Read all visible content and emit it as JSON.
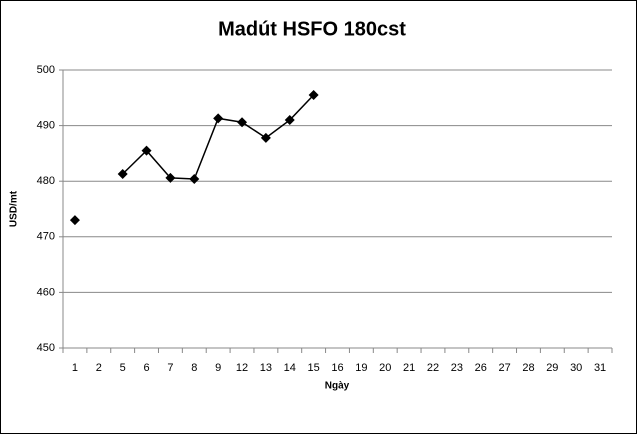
{
  "chart_data": {
    "type": "line",
    "title": "Madút HSFO 180cst",
    "x_label": "Ngày",
    "y_label": "USD/mt",
    "categories": [
      "1",
      "2",
      "5",
      "6",
      "7",
      "8",
      "9",
      "12",
      "13",
      "14",
      "15",
      "16",
      "19",
      "20",
      "21",
      "22",
      "23",
      "26",
      "27",
      "28",
      "29",
      "30",
      "31"
    ],
    "series": [
      {
        "name": "Madút HSFO 180cst",
        "color": "#000000",
        "values": [
          473,
          null,
          481.3,
          485.5,
          480.6,
          480.4,
          491.3,
          490.6,
          487.8,
          491,
          495.5,
          null,
          null,
          null,
          null,
          null,
          null,
          null,
          null,
          null,
          null,
          null,
          null
        ]
      }
    ],
    "ylim": [
      450,
      500
    ],
    "yticks": [
      450,
      460,
      470,
      480,
      490,
      500
    ],
    "grid": true
  }
}
